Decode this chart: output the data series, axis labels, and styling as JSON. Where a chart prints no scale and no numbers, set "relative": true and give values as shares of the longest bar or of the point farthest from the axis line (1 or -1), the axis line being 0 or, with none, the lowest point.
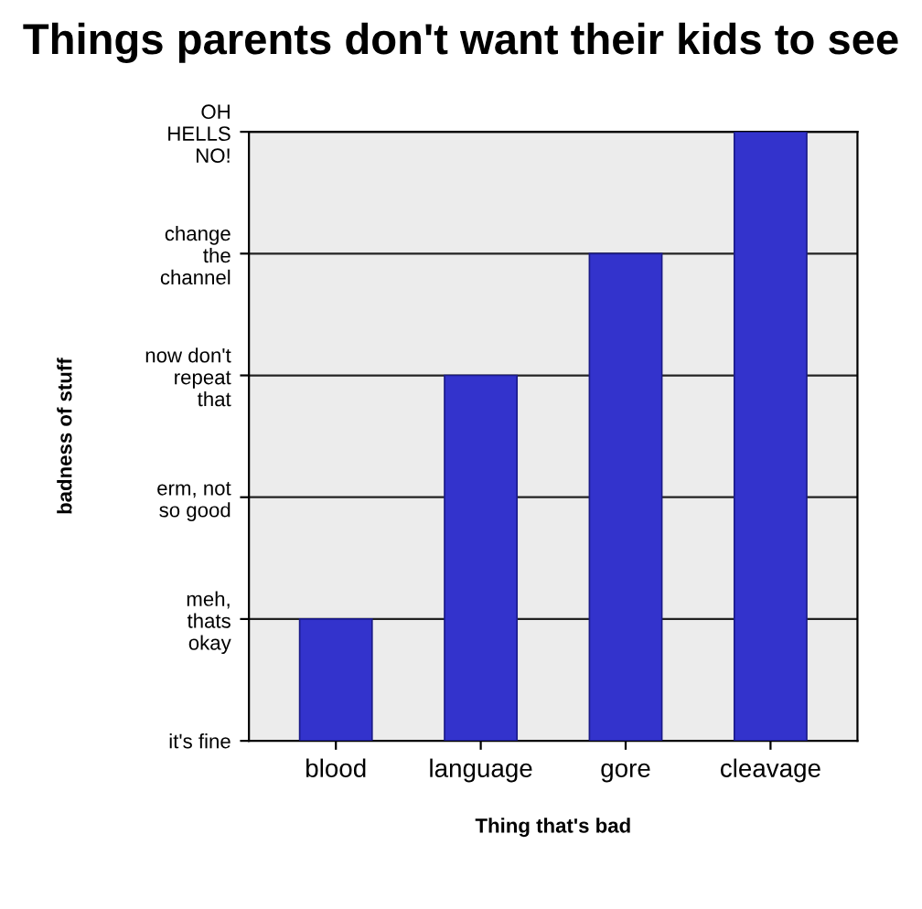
{
  "chart_data": {
    "type": "bar",
    "title": "Things parents don't want their kids to see",
    "xlabel": "Thing that's bad",
    "categories": [
      "blood",
      "language",
      "gore",
      "cleavage"
    ],
    "values": [
      0.2,
      0.6,
      0.8,
      1
    ],
    "color": "#3333cc",
    "relative": true,
    "annotations": [
      "it's fine",
      "meh,\nthats\nokay",
      "erm, not\nso good",
      "now don't\nrepeat\nthat",
      "change\nthe\nchannel",
      "OH\nHELLS\nNO!",
      "badness of stuff"
    ],
    "grid": "y",
    "legend": false
  }
}
